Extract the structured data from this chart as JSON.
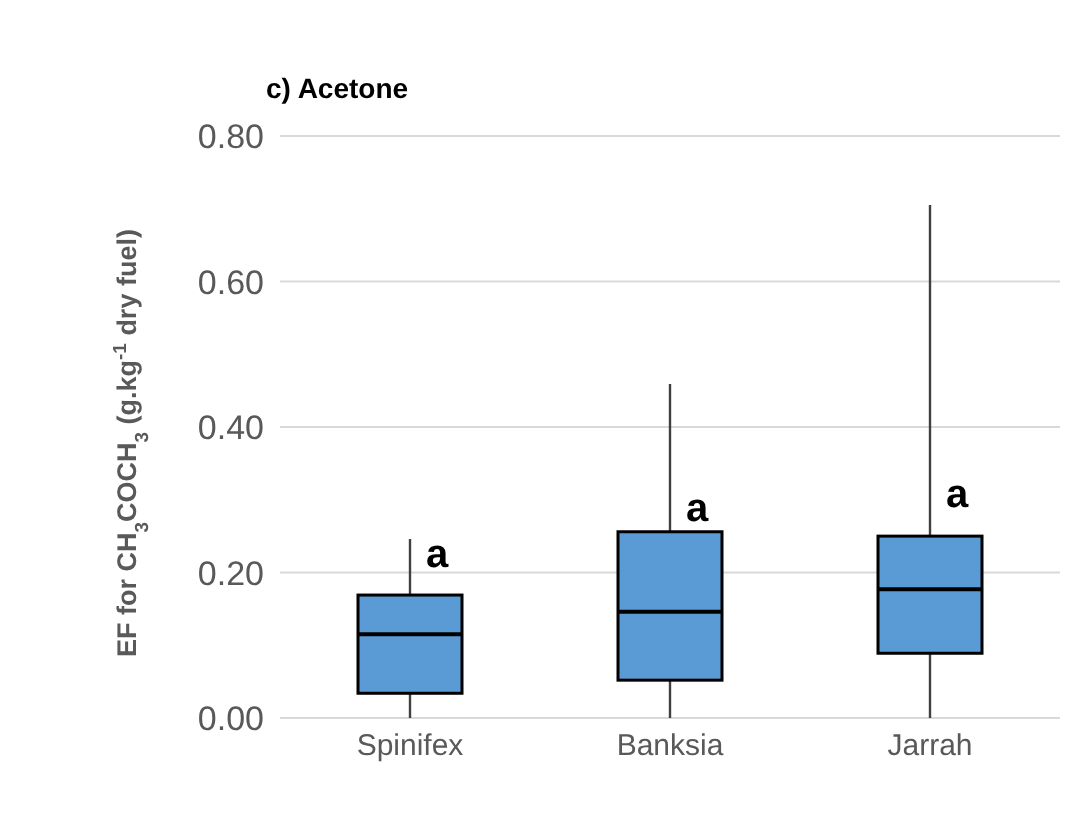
{
  "chart_data": {
    "type": "box",
    "title": "c) Acetone",
    "ylabel": "EF for CH$_{3}$COCH$_{3}$ (g.kg$^{-1}$ dry fuel)",
    "categories": [
      "Spinifex",
      "Banksia",
      "Jarrah"
    ],
    "color": "#5b9bd5",
    "boxes": [
      {
        "low": 0.0,
        "q1": 0.034,
        "median": 0.115,
        "q3": 0.169,
        "high": 0.246
      },
      {
        "low": 0.0,
        "q1": 0.052,
        "median": 0.146,
        "q3": 0.256,
        "high": 0.459
      },
      {
        "low": 0.0,
        "q1": 0.089,
        "median": 0.177,
        "q3": 0.25,
        "high": 0.705
      }
    ],
    "ylim": [
      0,
      0.8
    ],
    "yticks": [
      {
        "value": 0,
        "label": "0.00"
      },
      {
        "value": 0.2,
        "label": "0.20"
      },
      {
        "value": 0.4,
        "label": "0.40"
      },
      {
        "value": 0.6,
        "label": "0.60"
      },
      {
        "value": 0.8,
        "label": "0.80"
      }
    ],
    "grid": "y",
    "annotations": [
      {
        "text": "a",
        "x": "Spinifex",
        "y": 0.227
      },
      {
        "text": "a",
        "x": "Banksia",
        "y": 0.29
      },
      {
        "text": "a",
        "x": "Jarrah",
        "y": 0.31
      }
    ]
  }
}
